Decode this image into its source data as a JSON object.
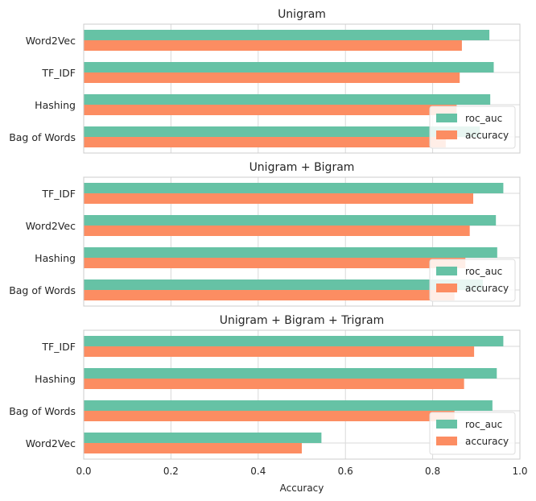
{
  "chart_data": [
    {
      "type": "bar",
      "orientation": "horizontal",
      "title": "Unigram",
      "categories": [
        "Word2Vec",
        "TF_IDF",
        "Hashing",
        "Bag of Words"
      ],
      "series": [
        {
          "name": "roc_auc",
          "values": [
            0.93,
            0.94,
            0.932,
            0.908
          ]
        },
        {
          "name": "accuracy",
          "values": [
            0.867,
            0.862,
            0.855,
            0.83
          ]
        }
      ],
      "xlim": [
        0,
        1
      ],
      "grid": true,
      "legend": "lower-right"
    },
    {
      "type": "bar",
      "orientation": "horizontal",
      "title": "Unigram + Bigram",
      "categories": [
        "TF_IDF",
        "Word2Vec",
        "Hashing",
        "Bag of Words"
      ],
      "series": [
        {
          "name": "roc_auc",
          "values": [
            0.962,
            0.945,
            0.948,
            0.915
          ]
        },
        {
          "name": "accuracy",
          "values": [
            0.893,
            0.885,
            0.875,
            0.85
          ]
        }
      ],
      "xlim": [
        0,
        1
      ],
      "grid": true,
      "legend": "lower-right"
    },
    {
      "type": "bar",
      "orientation": "horizontal",
      "title": "Unigram + Bigram + Trigram",
      "categories": [
        "TF_IDF",
        "Hashing",
        "Bag of Words",
        "Word2Vec"
      ],
      "series": [
        {
          "name": "roc_auc",
          "values": [
            0.962,
            0.947,
            0.937,
            0.545
          ]
        },
        {
          "name": "accuracy",
          "values": [
            0.895,
            0.872,
            0.85,
            0.5
          ]
        }
      ],
      "xlim": [
        0,
        1
      ],
      "xlabel": "Accuracy",
      "xticks": [
        "0.0",
        "0.2",
        "0.4",
        "0.6",
        "0.8",
        "1.0"
      ],
      "grid": true,
      "legend": "lower-right"
    }
  ],
  "colors": {
    "roc_auc": "#66c2a5",
    "accuracy": "#fc8d62"
  }
}
